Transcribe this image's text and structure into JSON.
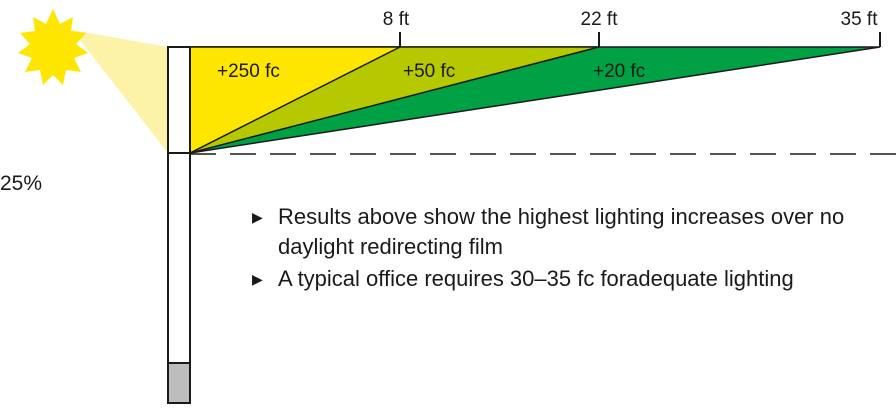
{
  "colors": {
    "sun": "#FFE600",
    "sun_glow": "#FCF3A8",
    "zone_near": "#FFE600",
    "zone_mid": "#B5C800",
    "zone_far": "#00A044",
    "window_lower": "#BDBDBD",
    "outline": "#1a1a1a"
  },
  "icons": {
    "sun": "sun-icon",
    "bullet": "triangle-right-icon"
  },
  "window": {
    "transmission_label": "25%"
  },
  "zones": [
    {
      "distance_label": "8 ft",
      "distance_ft": 8,
      "increase_label": "+250 fc"
    },
    {
      "distance_label": "22 ft",
      "distance_ft": 22,
      "increase_label": "+50 fc"
    },
    {
      "distance_label": "35 ft",
      "distance_ft": 35,
      "increase_label": "+20 fc"
    }
  ],
  "notes": [
    "Results above show the highest lighting increases over no daylight redirecting film",
    "A typical office requires 30–35 fc foradequate lighting"
  ]
}
